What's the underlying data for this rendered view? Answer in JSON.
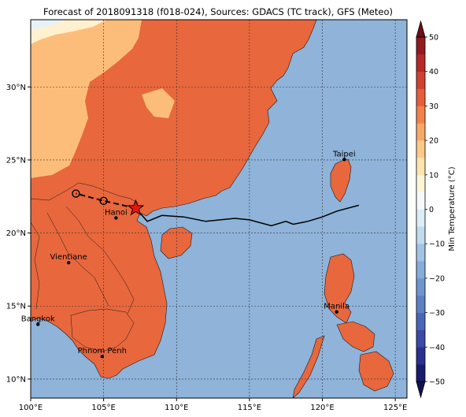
{
  "title": "Forecast of 2018091318 (f018-024), Sources: GDACS (TC track), GFS (Meteo)",
  "map": {
    "lon_range": [
      100,
      125.8
    ],
    "lat_range": [
      8.7,
      34.6
    ],
    "lon_ticks": [
      100,
      105,
      110,
      115,
      120,
      125
    ],
    "lon_tick_labels": [
      "100°E",
      "105°E",
      "110°E",
      "115°E",
      "120°E",
      "125°E"
    ],
    "lat_ticks": [
      10,
      15,
      20,
      25,
      30
    ],
    "lat_tick_labels": [
      "10°N",
      "15°N",
      "20°N",
      "25°N",
      "30°N"
    ],
    "gridlines": true,
    "ocean_color": "#8fb3d9"
  },
  "cities": [
    {
      "name": "Hanoi",
      "lon": 105.85,
      "lat": 21.03
    },
    {
      "name": "Taipei",
      "lon": 121.5,
      "lat": 25.03
    },
    {
      "name": "Vientiane",
      "lon": 102.6,
      "lat": 17.97
    },
    {
      "name": "Manila",
      "lon": 120.98,
      "lat": 14.6
    },
    {
      "name": "Bangkok",
      "lon": 100.5,
      "lat": 13.75
    },
    {
      "name": "Phnom Penh",
      "lon": 104.9,
      "lat": 11.55
    }
  ],
  "track": {
    "observed": [
      [
        122.5,
        21.9
      ],
      [
        121,
        21.5
      ],
      [
        120,
        21.1
      ],
      [
        119,
        20.8
      ],
      [
        118,
        20.6
      ],
      [
        117.5,
        20.8
      ],
      [
        116.5,
        20.5
      ],
      [
        115,
        20.9
      ],
      [
        114,
        21.0
      ],
      [
        112,
        20.8
      ],
      [
        110.5,
        21.1
      ],
      [
        109,
        21.2
      ],
      [
        108,
        20.8
      ],
      [
        107.2,
        21.7
      ]
    ],
    "forecast": [
      [
        107.2,
        21.7
      ],
      [
        105.0,
        22.2
      ],
      [
        103.1,
        22.7
      ]
    ],
    "forecast_positions": [
      [
        105.0,
        22.2
      ],
      [
        103.1,
        22.7
      ]
    ],
    "current_position": [
      107.2,
      21.7
    ]
  },
  "colorbar": {
    "label": "Min Temperature (°C)",
    "levels": [
      -50,
      -45,
      -40,
      -35,
      -30,
      -25,
      -20,
      -15,
      -10,
      -5,
      0,
      5,
      10,
      15,
      20,
      25,
      30,
      35,
      40,
      45,
      50
    ],
    "tick_labels": [
      "−50",
      "−40",
      "−30",
      "−20",
      "−10",
      "0",
      "10",
      "20",
      "30",
      "40",
      "50"
    ],
    "colors": [
      "#1a1a6e",
      "#2b2f8f",
      "#3b4aa6",
      "#4a66b8",
      "#5b80c4",
      "#6f97cf",
      "#86acd9",
      "#a2c3e4",
      "#c0daee",
      "#dcedf6",
      "#f5f9fb",
      "#fff6da",
      "#ffe4b0",
      "#fdc98a",
      "#f9a865",
      "#f2824a",
      "#e55f3a",
      "#d0402f",
      "#b52a26",
      "#931a1f"
    ],
    "extend_low_color": "#131350",
    "extend_high_color": "#6e0f16"
  }
}
